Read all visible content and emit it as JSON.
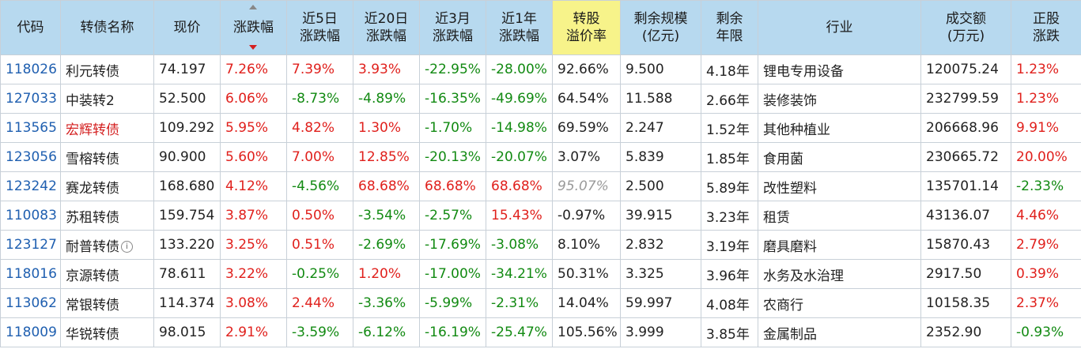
{
  "headers": {
    "code": [
      "代码"
    ],
    "name": [
      "转债名称"
    ],
    "price": [
      "现价"
    ],
    "change": [
      "涨跌幅"
    ],
    "chg5d": [
      "近5日",
      "涨跌幅"
    ],
    "chg20d": [
      "近20日",
      "涨跌幅"
    ],
    "chg3m": [
      "近3月",
      "涨跌幅"
    ],
    "chg1y": [
      "近1年",
      "涨跌幅"
    ],
    "premium": [
      "转股",
      "溢价率"
    ],
    "scale": [
      "剩余规模",
      "(亿元)"
    ],
    "years": [
      "剩余",
      "年限"
    ],
    "industry": [
      "行业"
    ],
    "volume": [
      "成交额",
      "(万元)"
    ],
    "stock_chg": [
      "正股",
      "涨跌"
    ]
  },
  "rows": [
    {
      "code": "118026",
      "name": "利元转债",
      "name_color": "normal",
      "price": "74.197",
      "change": "7.26%",
      "change_dir": "up",
      "chg5d": "7.39%",
      "chg5d_dir": "up",
      "chg20d": "3.93%",
      "chg20d_dir": "up",
      "chg3m": "-22.95%",
      "chg3m_dir": "down",
      "chg1y": "-28.00%",
      "chg1y_dir": "down",
      "premium": "92.66%",
      "premium_style": "normal",
      "scale": "9.500",
      "years": "4.18年",
      "industry": "锂电专用设备",
      "volume": "120075.24",
      "stock_chg": "1.23%",
      "stock_chg_dir": "up",
      "info": false
    },
    {
      "code": "127033",
      "name": "中装转2",
      "name_color": "normal",
      "price": "52.500",
      "change": "6.06%",
      "change_dir": "up",
      "chg5d": "-8.73%",
      "chg5d_dir": "down",
      "chg20d": "-4.89%",
      "chg20d_dir": "down",
      "chg3m": "-16.35%",
      "chg3m_dir": "down",
      "chg1y": "-49.69%",
      "chg1y_dir": "down",
      "premium": "64.54%",
      "premium_style": "normal",
      "scale": "11.588",
      "years": "2.66年",
      "industry": "装修装饰",
      "volume": "232799.59",
      "stock_chg": "1.23%",
      "stock_chg_dir": "up",
      "info": false
    },
    {
      "code": "113565",
      "name": "宏辉转债",
      "name_color": "red",
      "price": "109.292",
      "change": "5.95%",
      "change_dir": "up",
      "chg5d": "4.82%",
      "chg5d_dir": "up",
      "chg20d": "1.30%",
      "chg20d_dir": "up",
      "chg3m": "-1.70%",
      "chg3m_dir": "down",
      "chg1y": "-14.98%",
      "chg1y_dir": "down",
      "premium": "69.59%",
      "premium_style": "normal",
      "scale": "2.247",
      "years": "1.52年",
      "industry": "其他种植业",
      "volume": "206668.96",
      "stock_chg": "9.91%",
      "stock_chg_dir": "up",
      "info": false
    },
    {
      "code": "123056",
      "name": "雪榕转债",
      "name_color": "normal",
      "price": "90.900",
      "change": "5.60%",
      "change_dir": "up",
      "chg5d": "7.00%",
      "chg5d_dir": "up",
      "chg20d": "12.85%",
      "chg20d_dir": "up",
      "chg3m": "-20.13%",
      "chg3m_dir": "down",
      "chg1y": "-20.07%",
      "chg1y_dir": "down",
      "premium": "3.07%",
      "premium_style": "normal",
      "scale": "5.839",
      "years": "1.85年",
      "industry": "食用菌",
      "volume": "230665.72",
      "stock_chg": "20.00%",
      "stock_chg_dir": "up",
      "info": false
    },
    {
      "code": "123242",
      "name": "赛龙转债",
      "name_color": "normal",
      "price": "168.680",
      "change": "4.12%",
      "change_dir": "up",
      "chg5d": "-4.56%",
      "chg5d_dir": "down",
      "chg20d": "68.68%",
      "chg20d_dir": "up",
      "chg3m": "68.68%",
      "chg3m_dir": "up",
      "chg1y": "68.68%",
      "chg1y_dir": "up",
      "premium": "95.07%",
      "premium_style": "muted",
      "scale": "2.500",
      "years": "5.89年",
      "industry": "改性塑料",
      "volume": "135701.14",
      "stock_chg": "-2.33%",
      "stock_chg_dir": "down",
      "info": false
    },
    {
      "code": "110083",
      "name": "苏租转债",
      "name_color": "normal",
      "price": "159.754",
      "change": "3.87%",
      "change_dir": "up",
      "chg5d": "0.50%",
      "chg5d_dir": "up",
      "chg20d": "-3.54%",
      "chg20d_dir": "down",
      "chg3m": "-2.57%",
      "chg3m_dir": "down",
      "chg1y": "15.43%",
      "chg1y_dir": "up",
      "premium": "-0.97%",
      "premium_style": "normal",
      "scale": "39.915",
      "years": "3.23年",
      "industry": "租赁",
      "volume": "43136.07",
      "stock_chg": "4.46%",
      "stock_chg_dir": "up",
      "info": false
    },
    {
      "code": "123127",
      "name": "耐普转债",
      "name_color": "normal",
      "price": "133.220",
      "change": "3.25%",
      "change_dir": "up",
      "chg5d": "0.51%",
      "chg5d_dir": "up",
      "chg20d": "-2.69%",
      "chg20d_dir": "down",
      "chg3m": "-17.69%",
      "chg3m_dir": "down",
      "chg1y": "-3.08%",
      "chg1y_dir": "down",
      "premium": "8.10%",
      "premium_style": "normal",
      "scale": "2.832",
      "years": "3.19年",
      "industry": "磨具磨料",
      "volume": "15870.43",
      "stock_chg": "2.79%",
      "stock_chg_dir": "up",
      "info": true
    },
    {
      "code": "118016",
      "name": "京源转债",
      "name_color": "normal",
      "price": "78.611",
      "change": "3.22%",
      "change_dir": "up",
      "chg5d": "-0.25%",
      "chg5d_dir": "down",
      "chg20d": "1.20%",
      "chg20d_dir": "up",
      "chg3m": "-17.00%",
      "chg3m_dir": "down",
      "chg1y": "-34.21%",
      "chg1y_dir": "down",
      "premium": "50.31%",
      "premium_style": "normal",
      "scale": "3.325",
      "years": "3.96年",
      "industry": "水务及水治理",
      "volume": "2917.50",
      "stock_chg": "0.39%",
      "stock_chg_dir": "up",
      "info": false
    },
    {
      "code": "113062",
      "name": "常银转债",
      "name_color": "normal",
      "price": "114.374",
      "change": "3.08%",
      "change_dir": "up",
      "chg5d": "2.44%",
      "chg5d_dir": "up",
      "chg20d": "-3.36%",
      "chg20d_dir": "down",
      "chg3m": "-5.99%",
      "chg3m_dir": "down",
      "chg1y": "-2.31%",
      "chg1y_dir": "down",
      "premium": "14.04%",
      "premium_style": "normal",
      "scale": "59.997",
      "years": "4.08年",
      "industry": "农商行",
      "volume": "10158.35",
      "stock_chg": "2.37%",
      "stock_chg_dir": "up",
      "info": false
    },
    {
      "code": "118009",
      "name": "华锐转债",
      "name_color": "normal",
      "price": "98.015",
      "change": "2.91%",
      "change_dir": "up",
      "chg5d": "-3.59%",
      "chg5d_dir": "down",
      "chg20d": "-6.12%",
      "chg20d_dir": "down",
      "chg3m": "-16.19%",
      "chg3m_dir": "down",
      "chg1y": "-25.47%",
      "chg1y_dir": "down",
      "premium": "105.56%",
      "premium_style": "normal",
      "scale": "3.999",
      "years": "3.85年",
      "industry": "金属制品",
      "volume": "2352.90",
      "stock_chg": "-0.93%",
      "stock_chg_dir": "down",
      "info": false
    }
  ],
  "info_icon": "info-circle-icon"
}
